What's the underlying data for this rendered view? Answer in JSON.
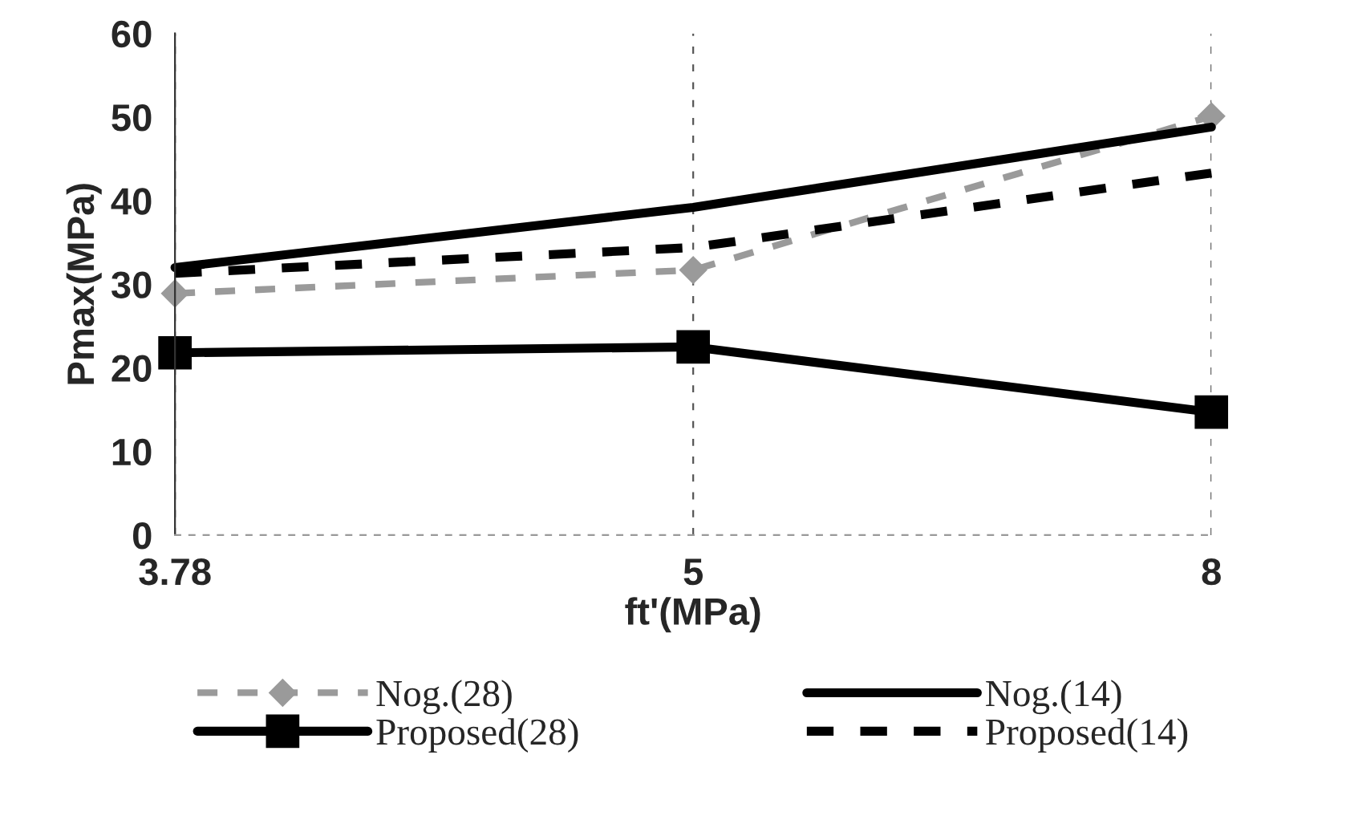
{
  "chart_data": {
    "type": "line",
    "xlabel": "ft'(MPa)",
    "ylabel": "Pmax(MPa)",
    "categories": [
      "3.78",
      "5",
      "8"
    ],
    "series": [
      {
        "name": "Nog.(28)",
        "color": "#9a9a9a",
        "values": [
          28.9,
          31.7,
          50.1
        ],
        "marker": "diamond",
        "line_style": "dashed"
      },
      {
        "name": "Proposed(28)",
        "color": "#000000",
        "values": [
          21.8,
          22.5,
          14.7
        ],
        "marker": "square",
        "line_style": "solid"
      },
      {
        "name": "Nog.(14)",
        "color": "#000000",
        "values": [
          32.0,
          39.2,
          48.8
        ],
        "marker": "none",
        "line_style": "solid"
      },
      {
        "name": "Proposed(14)",
        "color": "#000000",
        "values": [
          31.3,
          34.4,
          43.3
        ],
        "marker": "none",
        "line_style": "dashed"
      }
    ],
    "ylim": [
      0,
      60
    ],
    "yticks": [
      0,
      10,
      20,
      30,
      40,
      50,
      60
    ],
    "grid": "x",
    "legend": "bottom"
  }
}
